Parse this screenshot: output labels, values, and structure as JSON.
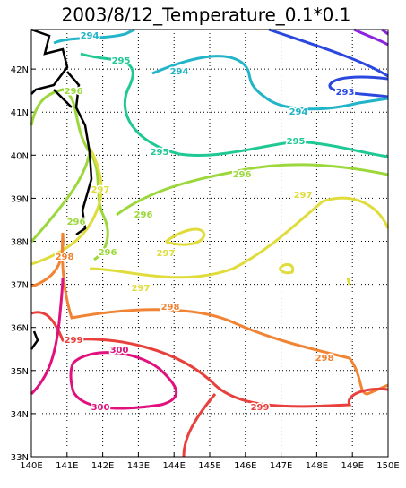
{
  "title": "2003/8/12_Temperature_0.1*0.1",
  "x_axis": {
    "labels": [
      "140E",
      "141E",
      "142E",
      "143E",
      "144E",
      "145E",
      "146E",
      "147E",
      "148E",
      "149E",
      "150E"
    ]
  },
  "y_axis": {
    "labels": [
      "33N",
      "34N",
      "35N",
      "36N",
      "37N",
      "38N",
      "39N",
      "40N",
      "41N",
      "42N"
    ]
  },
  "contours": [
    {
      "label": "293",
      "color": "#2a48e0"
    },
    {
      "label": "294",
      "color": "#22b4c8"
    },
    {
      "label": "295",
      "color": "#20c894"
    },
    {
      "label": "296",
      "color": "#9cd83c"
    },
    {
      "label": "297",
      "color": "#e0dc3c"
    },
    {
      "label": "298",
      "color": "#f08434"
    },
    {
      "label": "299",
      "color": "#e8403c"
    },
    {
      "label": "300",
      "color": "#e0107c"
    }
  ]
}
